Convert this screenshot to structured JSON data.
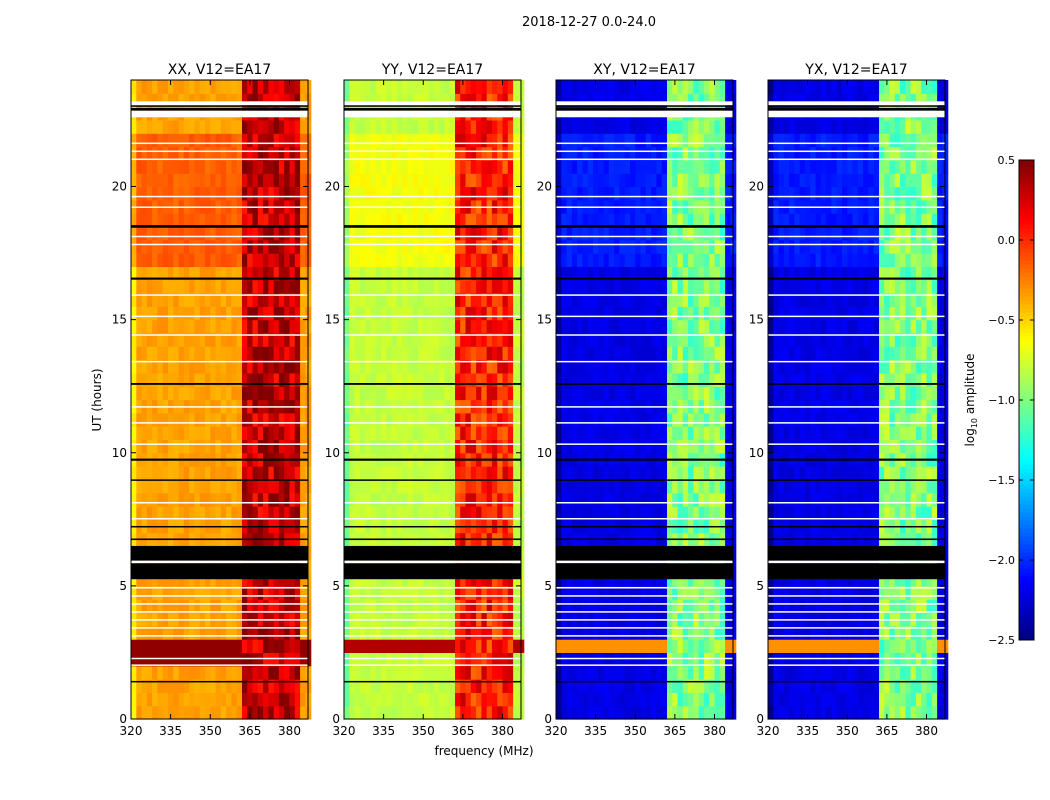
{
  "chart_data": {
    "type": "heatmap",
    "title": "2018-12-27 0.0-24.0",
    "xlabel": "frequency (MHz)",
    "ylabel": "UT (hours)",
    "xlim": [
      320,
      387
    ],
    "ylim": [
      0,
      24
    ],
    "xticks": [
      "320",
      "335",
      "350",
      "365",
      "380"
    ],
    "xtick_values": [
      320,
      335,
      350,
      365,
      380
    ],
    "yticks": [
      "0",
      "5",
      "10",
      "15",
      "20"
    ],
    "ytick_values": [
      0,
      5,
      10,
      15,
      20
    ],
    "colorbar": {
      "label_main": "log",
      "label_sub": "10",
      "label_rest": " amplitude",
      "range": [
        -2.5,
        0.5
      ],
      "ticks": [
        "0.5",
        "0.0",
        "−0.5",
        "−1.0",
        "−1.5",
        "−2.0",
        "−2.5"
      ],
      "tick_values": [
        0.5,
        0,
        -0.5,
        -1,
        -1.5,
        -2,
        -2.5
      ],
      "colormap": "jet"
    },
    "band_channels_mhz": [
      [
        362,
        367
      ],
      [
        367.5,
        372.5
      ],
      [
        373,
        377.5
      ],
      [
        378,
        383
      ]
    ],
    "flagged_black_hours": [
      [
        5.25,
        5.85
      ],
      [
        5.95,
        6.5
      ],
      [
        9.7,
        9.78
      ],
      [
        12.55,
        12.62
      ],
      [
        16.5,
        16.58
      ],
      [
        18.45,
        18.55
      ],
      [
        22.85,
        22.95
      ],
      [
        23.0,
        23.05
      ],
      [
        6.72,
        6.78
      ],
      [
        7.2,
        7.25
      ],
      [
        8.95,
        9.0
      ],
      [
        1.4,
        1.43
      ]
    ],
    "flagged_white_hours": [
      [
        5.85,
        5.95
      ],
      [
        4.9,
        4.96
      ],
      [
        4.6,
        4.65
      ],
      [
        4.3,
        4.35
      ],
      [
        4.0,
        4.05
      ],
      [
        3.7,
        3.75
      ],
      [
        3.4,
        3.45
      ],
      [
        3.1,
        3.15
      ],
      [
        2.25,
        2.3
      ],
      [
        2.0,
        2.05
      ],
      [
        7.5,
        7.55
      ],
      [
        8.1,
        8.15
      ],
      [
        10.3,
        10.35
      ],
      [
        11.1,
        11.15
      ],
      [
        11.7,
        11.75
      ],
      [
        13.4,
        13.45
      ],
      [
        14.4,
        14.45
      ],
      [
        15.1,
        15.15
      ],
      [
        15.9,
        15.95
      ],
      [
        17.8,
        17.85
      ],
      [
        18.1,
        18.15
      ],
      [
        19.2,
        19.25
      ],
      [
        19.6,
        19.65
      ],
      [
        21.0,
        21.05
      ],
      [
        21.3,
        21.35
      ],
      [
        21.6,
        21.65
      ],
      [
        22.6,
        22.85
      ],
      [
        23.05,
        23.2
      ]
    ],
    "panels": [
      {
        "title": "XX, V12=EA17",
        "background": -0.35,
        "background_17_22h": -0.15,
        "band": 0.3,
        "flare_row_hours": [
          2.5,
          2.85
        ],
        "flare_value": 0.45
      },
      {
        "title": "YY, V12=EA17",
        "background": -0.8,
        "background_17_22h": -0.65,
        "band": 0.05,
        "flare_row_hours": [
          2.55,
          2.8
        ],
        "flare_value": 0.35
      },
      {
        "title": "XY, V12=EA17",
        "background": -2.2,
        "background_17_22h": -2.05,
        "band": -1.0,
        "flare_row_hours": [
          2.55,
          2.75
        ],
        "flare_value": -0.3
      },
      {
        "title": "YX, V12=EA17",
        "background": -2.2,
        "background_17_22h": -2.05,
        "band": -1.0,
        "flare_row_hours": [
          2.55,
          2.75
        ],
        "flare_value": -0.3
      }
    ]
  }
}
